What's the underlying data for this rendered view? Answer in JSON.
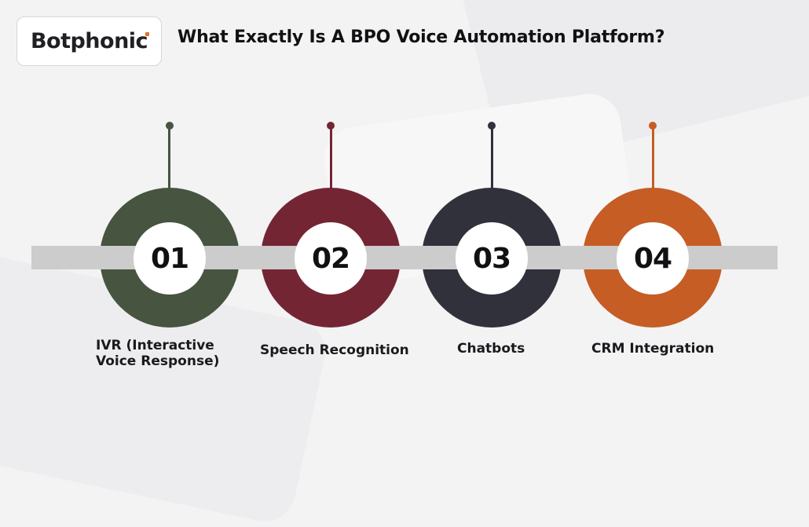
{
  "brand": {
    "logo_text": "Botphonic"
  },
  "header": {
    "title": "What Exactly Is A BPO Voice Automation Platform?"
  },
  "steps": [
    {
      "number": "01",
      "label_lines": [
        "IVR (Interactive",
        "Voice Response)"
      ],
      "color": "#465440"
    },
    {
      "number": "02",
      "label_lines": [
        "Speech Recognition"
      ],
      "color": "#742533"
    },
    {
      "number": "03",
      "label_lines": [
        "Chatbots"
      ],
      "color": "#30313b"
    },
    {
      "number": "04",
      "label_lines": [
        "CRM Integration"
      ],
      "color": "#c55d25"
    }
  ],
  "colors": {
    "bar": "#cccccc",
    "background": "#f3f3f4",
    "text": "#111114"
  }
}
